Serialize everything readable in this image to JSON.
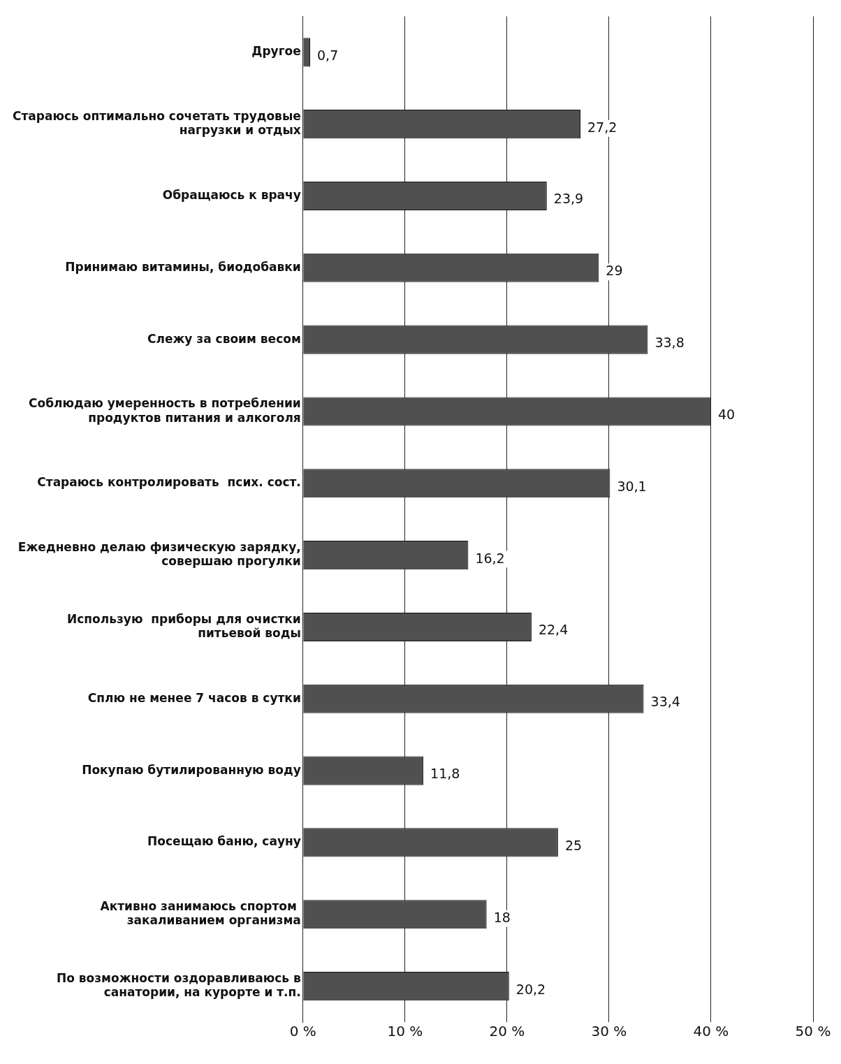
{
  "chart_data": {
    "type": "bar",
    "orientation": "horizontal",
    "categories": [
      "Другое",
      "Стараюсь оптимально сочетать трудовые нагрузки и отдых",
      "Обращаюсь к врачу",
      "Принимаю витамины, биодобавки",
      "Слежу за своим весом",
      "Соблюдаю умеренность в потреблении продуктов питания и алкоголя",
      "Стараюсь контролировать  псих. сост.",
      "Ежедневно делаю физическую зарядку, совершаю прогулки",
      "Использую  приборы для очистки питьевой воды",
      "Сплю не менее 7 часов в сутки",
      "Покупаю бутилированную воду",
      "Посещаю баню, сауну",
      "Активно занимаюсь спортом  закаливанием организма",
      "По возможности оздоравливаюсь в санатории, на курорте и т.п."
    ],
    "values": [
      0.7,
      27.2,
      23.9,
      29,
      33.8,
      40,
      30.1,
      16.2,
      22.4,
      33.4,
      11.8,
      25,
      18,
      20.2
    ],
    "value_labels": [
      "0,7",
      "27,2",
      "23,9",
      "29",
      "33,8",
      "40",
      "30,1",
      "16,2",
      "22,4",
      "33,4",
      "11,8",
      "25",
      "18",
      "20,2"
    ],
    "color": "#505050",
    "xlim": [
      0,
      50
    ],
    "xticks": [
      {
        "value": 0,
        "label": "0 %"
      },
      {
        "value": 10,
        "label": "10 %"
      },
      {
        "value": 20,
        "label": "20 %"
      },
      {
        "value": 30,
        "label": "30 %"
      },
      {
        "value": 40,
        "label": "40 %"
      },
      {
        "value": 50,
        "label": "50 %"
      }
    ],
    "grid": "x"
  }
}
